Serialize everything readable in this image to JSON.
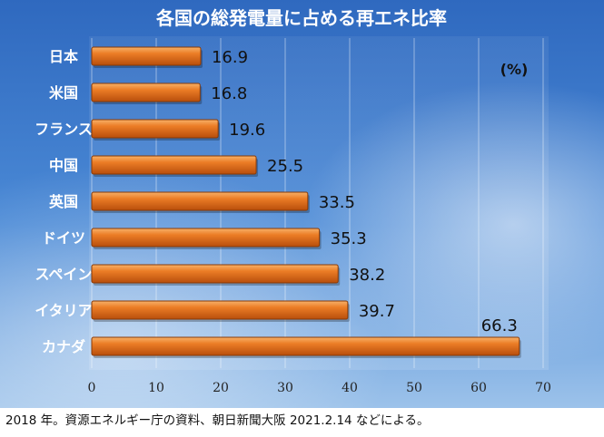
{
  "chart_data": {
    "type": "bar",
    "orientation": "horizontal",
    "title": "各国の総発電量に占める再エネ比率",
    "unit_label": "(%)",
    "categories": [
      "日本",
      "米国",
      "フランス",
      "中国",
      "英国",
      "ドイツ",
      "スペイン",
      "イタリア",
      "カナダ"
    ],
    "values": [
      16.9,
      16.8,
      19.6,
      25.5,
      33.5,
      35.3,
      38.2,
      39.7,
      66.3
    ],
    "value_labels": [
      "16.9",
      "16.8",
      "19.6",
      "25.5",
      "33.5",
      "35.3",
      "38.2",
      "39.7",
      "66.3"
    ],
    "x_ticks": [
      "0",
      "10",
      "20",
      "30",
      "40",
      "50",
      "60",
      "70"
    ],
    "xlim": [
      0,
      70
    ],
    "grid": true,
    "bar_color": "#e8741e",
    "background_color": "#3f7fcf"
  },
  "source_note": "2018 年。資源エネルギー庁の資料、朝日新聞大阪 2021.2.14 などによる。"
}
